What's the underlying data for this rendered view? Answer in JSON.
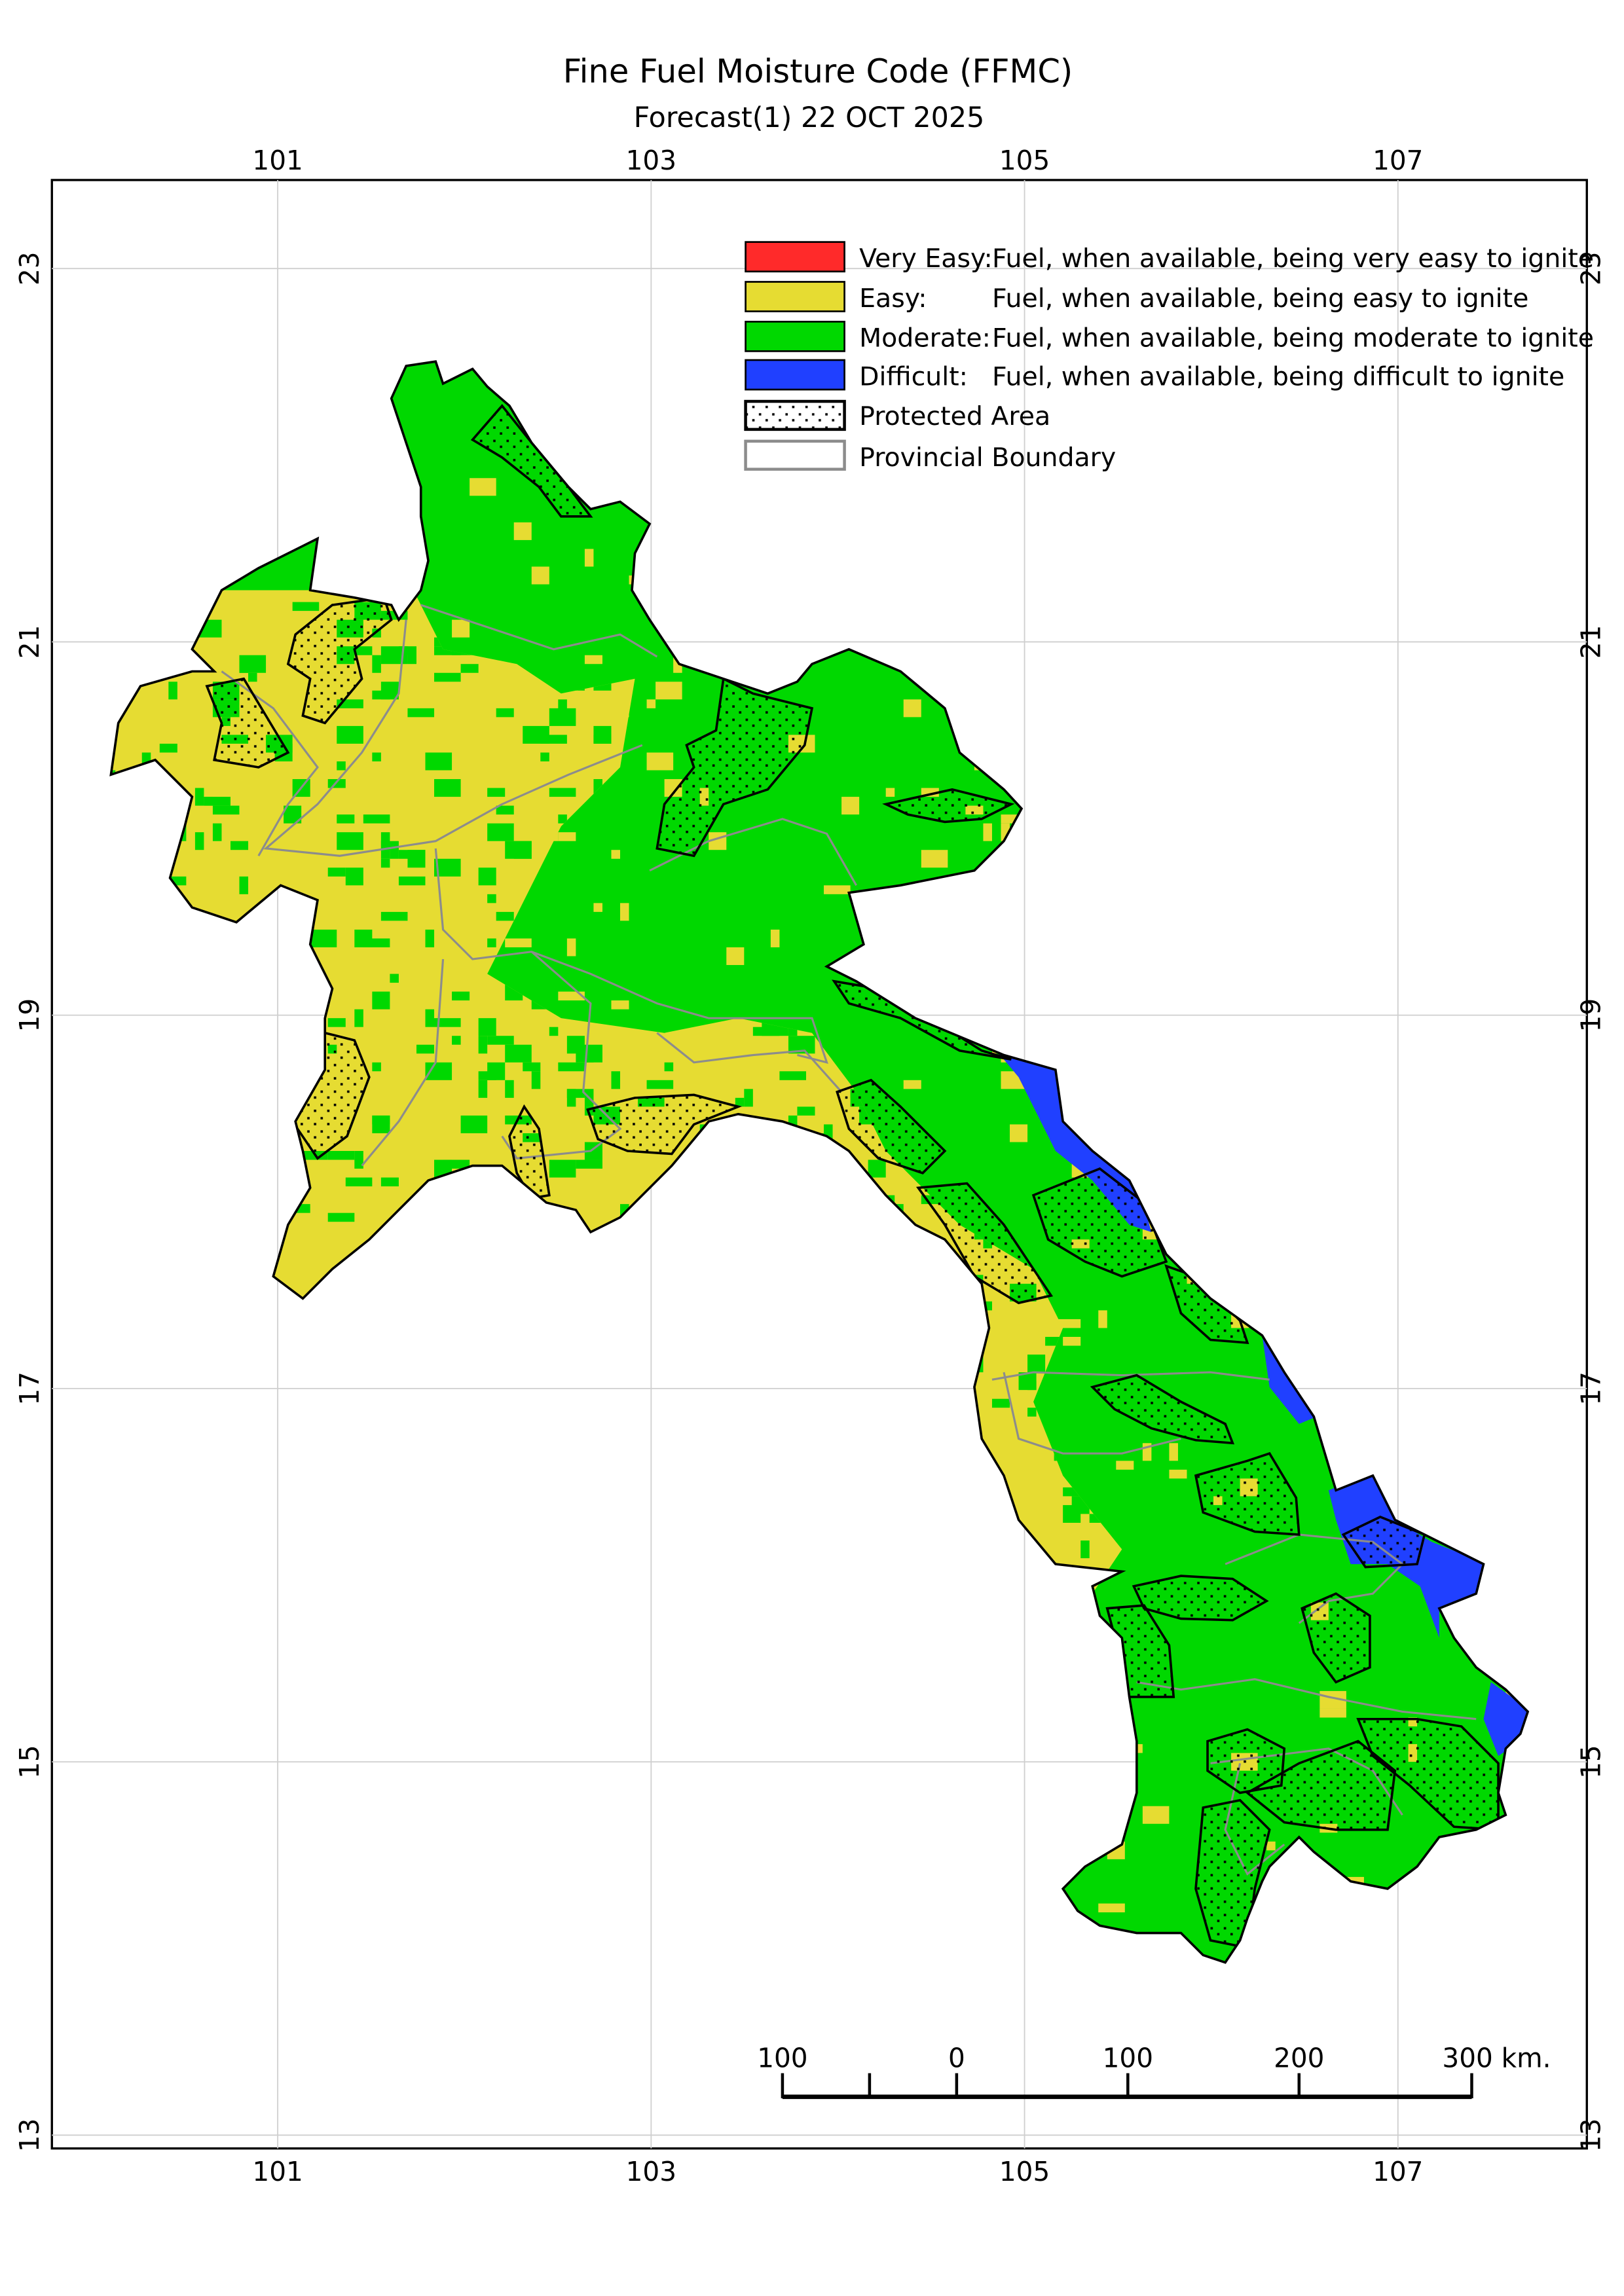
{
  "title": "Fine Fuel Moisture Code (FFMC)",
  "subtitle": "Forecast(1) 22 OCT 2025",
  "axes": {
    "longitude_labels": [
      "101",
      "103",
      "105",
      "107"
    ],
    "latitude_labels": [
      "23",
      "21",
      "19",
      "17",
      "15",
      "13"
    ]
  },
  "legend": [
    {
      "label": "Very Easy:",
      "description": "Fuel, when available, being very easy to ignite",
      "color": "#ff2a2a"
    },
    {
      "label": "Easy:",
      "description": "Fuel, when available, being easy to ignite",
      "color": "#e6dc32"
    },
    {
      "label": "Moderate:",
      "description": "Fuel, when available, being moderate to ignite",
      "color": "#00d800"
    },
    {
      "label": "Difficult:",
      "description": "Fuel, when available, being difficult to ignite",
      "color": "#2040ff"
    },
    {
      "label": "Protected Area",
      "description": "",
      "pattern": "dotted"
    },
    {
      "label": "Provincial Boundary",
      "description": "",
      "color": "#8c8c8c"
    }
  ],
  "scale_bar": {
    "labels": [
      "100",
      "0",
      "100",
      "200",
      "300 km."
    ]
  }
}
